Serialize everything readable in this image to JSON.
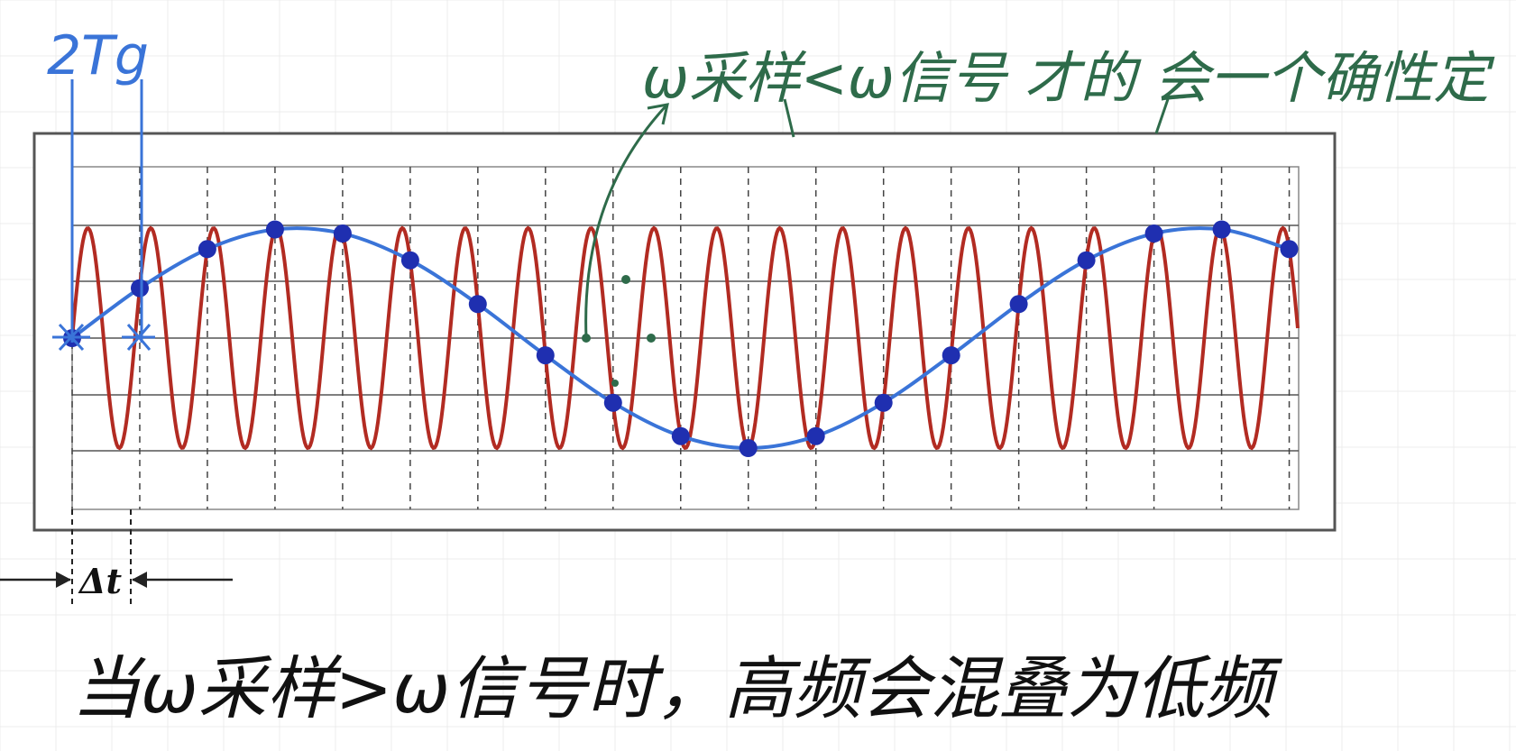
{
  "annotations": {
    "sample_period_label": "2Tg",
    "top_note": "ω采样<ω信号 才的 会一个确性定",
    "bottom_note": "当ω采样>ω信号时，高频会混叠为低频"
  },
  "figure": {
    "delta_label": "Δt"
  },
  "colors": {
    "signal": "#b22b22",
    "samples": "#1f2fb0",
    "alias_curve": "#3a74d8",
    "green_ink": "#2e6b4a",
    "frame": "#333333"
  },
  "signal": {
    "cycles": 19.5,
    "samples_per_period_ratio": 1.075
  }
}
